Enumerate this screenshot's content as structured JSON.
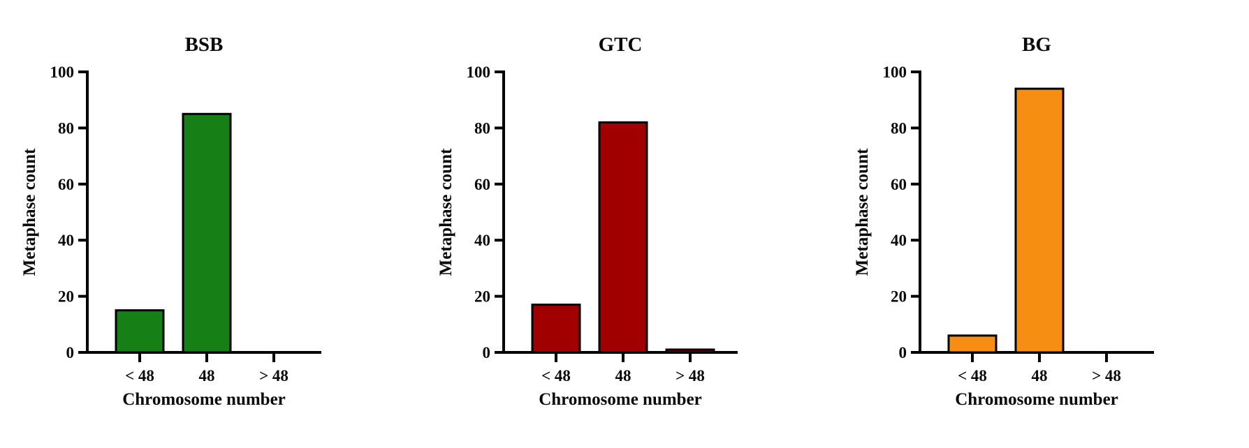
{
  "figure_background": "#ffffff",
  "axis_color": "#000000",
  "chart_data": [
    {
      "type": "bar",
      "title": "BSB",
      "xlabel": "Chromosome number",
      "ylabel": "Metaphase count",
      "categories": [
        "< 48",
        "48",
        "> 48"
      ],
      "values": [
        15,
        85,
        0
      ],
      "ylim": [
        0,
        100
      ],
      "yticks": [
        0,
        20,
        40,
        60,
        80,
        100
      ],
      "bar_color": "#168016",
      "bar_border_color": "#000000",
      "grid": false,
      "legend": "none"
    },
    {
      "type": "bar",
      "title": "GTC",
      "xlabel": "Chromosome number",
      "ylabel": "Metaphase count",
      "categories": [
        "< 48",
        "48",
        "> 48"
      ],
      "values": [
        17,
        82,
        1
      ],
      "ylim": [
        0,
        100
      ],
      "yticks": [
        0,
        20,
        40,
        60,
        80,
        100
      ],
      "bar_color": "#A00000",
      "bar_border_color": "#000000",
      "grid": false,
      "legend": "none"
    },
    {
      "type": "bar",
      "title": "BG",
      "xlabel": "Chromosome number",
      "ylabel": "Metaphase count",
      "categories": [
        "< 48",
        "48",
        "> 48"
      ],
      "values": [
        6,
        94,
        0
      ],
      "ylim": [
        0,
        100
      ],
      "yticks": [
        0,
        20,
        40,
        60,
        80,
        100
      ],
      "bar_color": "#F78E14",
      "bar_border_color": "#000000",
      "grid": false,
      "legend": "none"
    }
  ]
}
